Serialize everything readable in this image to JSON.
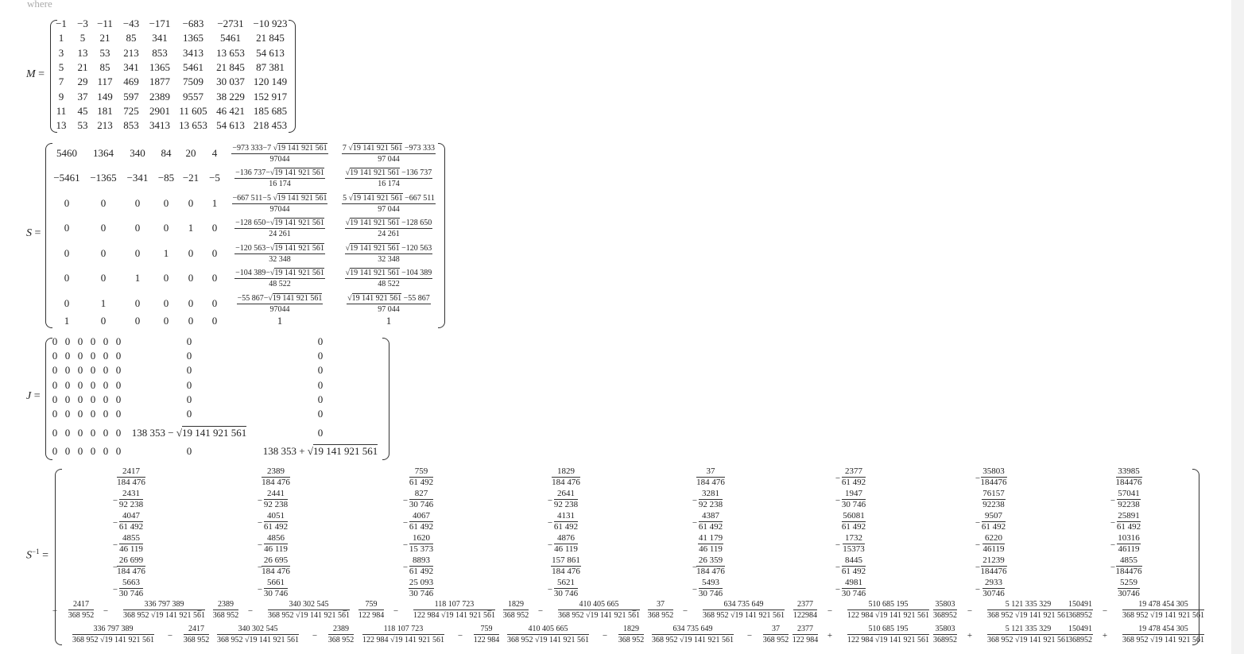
{
  "header": {
    "text": "where"
  },
  "labels": {
    "M": "M",
    "S": "S",
    "J": "J",
    "Sinv_base": "S",
    "Sinv_sup": "−1",
    "eq": "="
  },
  "M": [
    [
      "−1",
      "−3",
      "−11",
      "−43",
      "−171",
      "−683",
      "−2731",
      "−10 923"
    ],
    [
      "1",
      "5",
      "21",
      "85",
      "341",
      "1365",
      "5461",
      "21 845"
    ],
    [
      "3",
      "13",
      "53",
      "213",
      "853",
      "3413",
      "13 653",
      "54 613"
    ],
    [
      "5",
      "21",
      "85",
      "341",
      "1365",
      "5461",
      "21 845",
      "87 381"
    ],
    [
      "7",
      "29",
      "117",
      "469",
      "1877",
      "7509",
      "30 037",
      "120 149"
    ],
    [
      "9",
      "37",
      "149",
      "597",
      "2389",
      "9557",
      "38 229",
      "152 917"
    ],
    [
      "11",
      "45",
      "181",
      "725",
      "2901",
      "11 605",
      "46 421",
      "185 685"
    ],
    [
      "13",
      "53",
      "213",
      "853",
      "3413",
      "13 653",
      "54 613",
      "218 453"
    ]
  ],
  "S": {
    "int": [
      [
        "5460",
        "1364",
        "340",
        "84",
        "20",
        "4"
      ],
      [
        "−5461",
        "−1365",
        "−341",
        "−85",
        "−21",
        "−5"
      ],
      [
        "0",
        "0",
        "0",
        "0",
        "0",
        "1"
      ],
      [
        "0",
        "0",
        "0",
        "0",
        "1",
        "0"
      ],
      [
        "0",
        "0",
        "0",
        "1",
        "0",
        "0"
      ],
      [
        "0",
        "0",
        "1",
        "0",
        "0",
        "0"
      ],
      [
        "0",
        "1",
        "0",
        "0",
        "0",
        "0"
      ],
      [
        "1",
        "0",
        "0",
        "0",
        "0",
        "0"
      ]
    ],
    "col7": [
      {
        "num_a": "−973 333−7 ",
        "num_r": "19 141 921 561",
        "num_b": "",
        "den": "97044"
      },
      {
        "num_a": "−136 737−",
        "num_r": "19 141 921 561",
        "num_b": "",
        "den": "16 174"
      },
      {
        "num_a": "−667 511−5 ",
        "num_r": "19 141 921 561",
        "num_b": "",
        "den": "97044"
      },
      {
        "num_a": "−128 650−",
        "num_r": "19 141 921 561",
        "num_b": "",
        "den": "24 261"
      },
      {
        "num_a": "−120 563−",
        "num_r": "19 141 921 561",
        "num_b": "",
        "den": "32 348"
      },
      {
        "num_a": "−104 389−",
        "num_r": "19 141 921 561",
        "num_b": "",
        "den": "48 522"
      },
      {
        "num_a": "−55 867−",
        "num_r": "19 141 921 561",
        "num_b": "",
        "den": "97044"
      }
    ],
    "col8": [
      {
        "num_a": "7 ",
        "num_r": "19 141 921 561",
        "num_b": " −973 333",
        "den": "97 044"
      },
      {
        "num_a": "",
        "num_r": "19 141 921 561",
        "num_b": " −136 737",
        "den": "16 174"
      },
      {
        "num_a": "5 ",
        "num_r": "19 141 921 561",
        "num_b": " −667 511",
        "den": "97 044"
      },
      {
        "num_a": "",
        "num_r": "19 141 921 561",
        "num_b": " −128 650",
        "den": "24 261"
      },
      {
        "num_a": "",
        "num_r": "19 141 921 561",
        "num_b": " −120 563",
        "den": "32 348"
      },
      {
        "num_a": "",
        "num_r": "19 141 921 561",
        "num_b": " −104 389",
        "den": "48 522"
      },
      {
        "num_a": "",
        "num_r": "19 141 921 561",
        "num_b": " −55 867",
        "den": "97 044"
      }
    ],
    "last": [
      "1",
      "1"
    ]
  },
  "J": {
    "zero": "0",
    "e7_a": "138 353 − ",
    "e8_a": "138 353 + ",
    "root": "19 141 921 561"
  },
  "Sinv": {
    "cols": [
      {
        "rows": [
          [
            "",
            "2417",
            "184 476"
          ],
          [
            "−",
            "2431",
            "92 238"
          ],
          [
            "−",
            "4047",
            "61 492"
          ],
          [
            "−",
            "4855",
            "46 119"
          ],
          [
            "−",
            "26 699",
            "184 476"
          ],
          [
            "−",
            "5663",
            "30 746"
          ]
        ],
        "r7": {
          "s1": "−",
          "f1": [
            "2417",
            "368 952"
          ],
          "op": "−",
          "f2": [
            "336 797 389",
            "368 952 √19 141 921 561"
          ]
        },
        "r8": {
          "s1": "",
          "f1": [
            "336 797 389",
            "368 952 √19 141 921 561"
          ],
          "op": "−",
          "f2": [
            "2417",
            "368 952"
          ]
        }
      },
      {
        "rows": [
          [
            "",
            "2389",
            "184 476"
          ],
          [
            "−",
            "2441",
            "92 238"
          ],
          [
            "−",
            "4051",
            "61 492"
          ],
          [
            "−",
            "4856",
            "46 119"
          ],
          [
            "−",
            "26 695",
            "184 476"
          ],
          [
            "−",
            "5661",
            "30 746"
          ]
        ],
        "r7": {
          "s1": "−",
          "f1": [
            "2389",
            "368 952"
          ],
          "op": "−",
          "f2": [
            "340 302 545",
            "368 952 √19 141 921 561"
          ]
        },
        "r8": {
          "s1": "",
          "f1": [
            "340 302 545",
            "368 952 √19 141 921 561"
          ],
          "op": "−",
          "f2": [
            "2389",
            "368 952"
          ]
        }
      },
      {
        "rows": [
          [
            "",
            "759",
            "61 492"
          ],
          [
            "−",
            "827",
            "30 746"
          ],
          [
            "−",
            "4067",
            "61 492"
          ],
          [
            "−",
            "1620",
            "15 373"
          ],
          [
            "−",
            "8893",
            "61 492"
          ],
          [
            "",
            "25 093",
            "30 746"
          ]
        ],
        "r7": {
          "s1": "−",
          "f1": [
            "759",
            "122 984"
          ],
          "op": "−",
          "f2": [
            "118 107 723",
            "122 984 √19 141 921 561"
          ]
        },
        "r8": {
          "s1": "",
          "f1": [
            "118 107 723",
            "122 984 √19 141 921 561"
          ],
          "op": "−",
          "f2": [
            "759",
            "122 984"
          ]
        }
      },
      {
        "rows": [
          [
            "",
            "1829",
            "184 476"
          ],
          [
            "−",
            "2641",
            "92 238"
          ],
          [
            "−",
            "4131",
            "61 492"
          ],
          [
            "−",
            "4876",
            "46 119"
          ],
          [
            "",
            "157 861",
            "184 476"
          ],
          [
            "−",
            "5621",
            "30 746"
          ]
        ],
        "r7": {
          "s1": "−",
          "f1": [
            "1829",
            "368 952"
          ],
          "op": "−",
          "f2": [
            "410 405 665",
            "368 952 √19 141 921 561"
          ]
        },
        "r8": {
          "s1": "",
          "f1": [
            "410 405 665",
            "368 952 √19 141 921 561"
          ],
          "op": "−",
          "f2": [
            "1829",
            "368 952"
          ]
        }
      },
      {
        "rows": [
          [
            "",
            "37",
            "184 476"
          ],
          [
            "−",
            "3281",
            "92 238"
          ],
          [
            "−",
            "4387",
            "61 492"
          ],
          [
            "",
            "41 179",
            "46 119"
          ],
          [
            "−",
            "26 359",
            "184 476"
          ],
          [
            "−",
            "5493",
            "30 746"
          ]
        ],
        "r7": {
          "s1": "−",
          "f1": [
            "37",
            "368 952"
          ],
          "op": "−",
          "f2": [
            "634 735 649",
            "368 952 √19 141 921 561"
          ]
        },
        "r8": {
          "s1": "",
          "f1": [
            "634 735 649",
            "368 952 √19 141 921 561"
          ],
          "op": "−",
          "f2": [
            "37",
            "368 952"
          ]
        }
      },
      {
        "rows": [
          [
            "−",
            "2377",
            "61 492"
          ],
          [
            "−",
            "1947",
            "30 746"
          ],
          [
            "",
            "56081",
            "61 492"
          ],
          [
            "−",
            "1732",
            "15373"
          ],
          [
            "−",
            "8445",
            "61 492"
          ],
          [
            "−",
            "4981",
            "30 746"
          ]
        ],
        "r7": {
          "s1": "",
          "f1": [
            "2377",
            "122984"
          ],
          "op": "−",
          "f2": [
            "510 685 195",
            "122 984 √19 141 921 561"
          ]
        },
        "r8": {
          "s1": "",
          "f1": [
            "2377",
            "122 984"
          ],
          "op": "+",
          "f2": [
            "510 685 195",
            "122 984 √19 141 921 561"
          ]
        }
      },
      {
        "rows": [
          [
            "−",
            "35803",
            "184476"
          ],
          [
            "",
            "76157",
            "92238"
          ],
          [
            "−",
            "9507",
            "61 492"
          ],
          [
            "−",
            "6220",
            "46119"
          ],
          [
            "−",
            "21239",
            "184476"
          ],
          [
            "−",
            "2933",
            "30746"
          ]
        ],
        "r7": {
          "s1": "",
          "f1": [
            "35803",
            "368952"
          ],
          "op": "−",
          "f2": [
            "5 121 335 329",
            "368 952 √19 141 921 561"
          ]
        },
        "r8": {
          "s1": "",
          "f1": [
            "35803",
            "368952"
          ],
          "op": "+",
          "f2": [
            "5 121 335 329",
            "368 952 √19 141 921 561"
          ]
        }
      },
      {
        "rows": [
          [
            "",
            "33985",
            "184476"
          ],
          [
            "−",
            "57041",
            "92238"
          ],
          [
            "−",
            "25891",
            "61 492"
          ],
          [
            "−",
            "10316",
            "46119"
          ],
          [
            "−",
            "4855",
            "184476"
          ],
          [
            "",
            "5259",
            "30746"
          ]
        ],
        "r7": {
          "s1": "",
          "f1": [
            "150491",
            "368952"
          ],
          "op": "−",
          "f2": [
            "19 478 454 305",
            "368 952 √19 141 921 561"
          ]
        },
        "r8": {
          "s1": "",
          "f1": [
            "150491",
            "368952"
          ],
          "op": "+",
          "f2": [
            "19 478 454 305",
            "368 952 √19 141 921 561"
          ]
        }
      }
    ]
  }
}
